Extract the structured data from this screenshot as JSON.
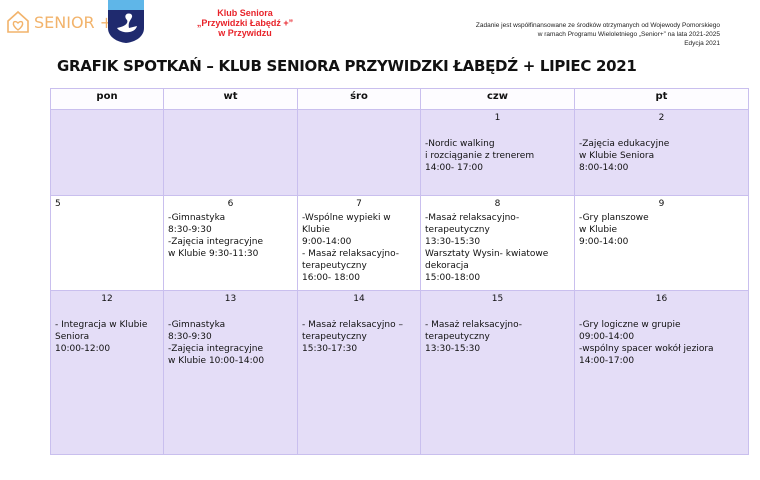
{
  "header": {
    "senior_logo": "SENIOR +",
    "club_name": [
      "Klub Seniora",
      "„Przywidzki Łabędź +”",
      "w Przywidzu"
    ],
    "funding": [
      "Zadanie jest współfinansowane ze środków otrzymanych od Wojewody Pomorskiego",
      "w ramach Programu Wieloletniego „Senior+” na lata 2021-2025",
      "Edycja 2021"
    ],
    "title": "GRAFIK SPOTKAŃ – KLUB SENIORA PRZYWIDZKI ŁABĘDŹ + LIPIEC 2021"
  },
  "days": [
    "pon",
    "wt",
    "śro",
    "czw",
    "pt"
  ],
  "weeks": [
    [
      {
        "n": "",
        "t": ""
      },
      {
        "n": "",
        "t": ""
      },
      {
        "n": "",
        "t": ""
      },
      {
        "n": "1",
        "t": "-Nordic walking\n i  rozciąganie z trenerem\n14:00- 17:00"
      },
      {
        "n": "2",
        "t": "-Zajęcia edukacyjne\nw Klubie Seniora\n   8:00-14:00"
      }
    ],
    [
      {
        "n": "5",
        "t": ""
      },
      {
        "n": "6",
        "t": "-Gimnastyka\n8:30-9:30\n-Zajęcia integracyjne\nw Klubie 9:30-11:30"
      },
      {
        "n": "7",
        "t": "-Wspólne wypieki w Klubie\n9:00-14:00\n- Masaż relaksacyjno-terapeutyczny\n16:00- 18:00"
      },
      {
        "n": "8",
        "t": "-Masaż relaksacyjno-terapeutyczny\n13:30-15:30\nWarsztaty Wysin- kwiatowe dekoracja\n15:00-18:00"
      },
      {
        "n": "9",
        "t": "-Gry planszowe\nw Klubie\n9:00-14:00"
      }
    ],
    [
      {
        "n": "12",
        "t": "- Integracja w Klubie Seniora\n10:00-12:00"
      },
      {
        "n": "13",
        "t": "-Gimnastyka\n8:30-9:30\n-Zajęcia integracyjne\nw Klubie 10:00-14:00"
      },
      {
        "n": "14",
        "t": "- Masaż relaksacyjno – terapeutyczny\n15:30-17:30"
      },
      {
        "n": "15",
        "t": "- Masaż relaksacyjno-terapeutyczny\n13:30-15:30"
      },
      {
        "n": "16",
        "t": "-Gry logiczne w grupie\n09:00-14:00\n-wspólny spacer wokół jeziora\n14:00-17:00"
      }
    ]
  ]
}
